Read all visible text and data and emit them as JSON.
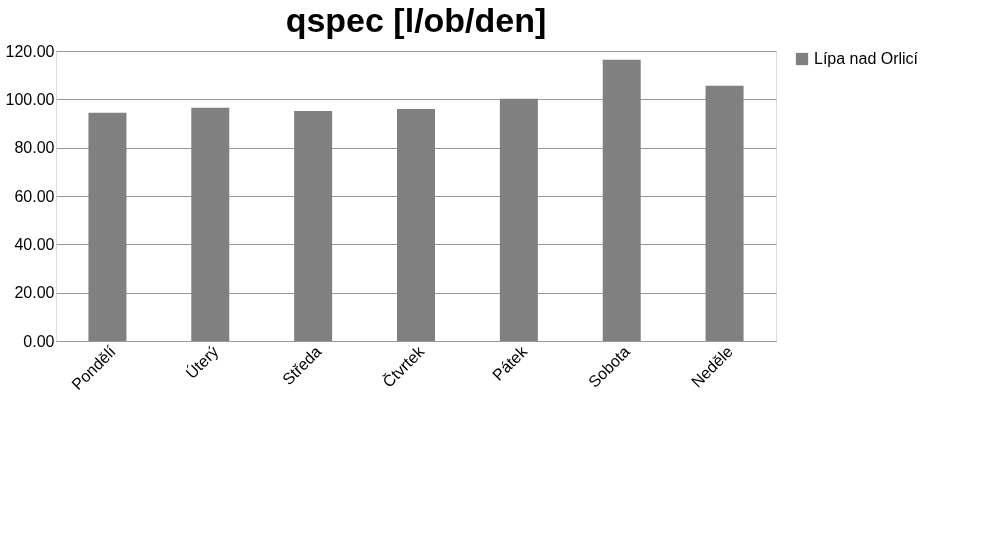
{
  "chart_data": {
    "type": "bar",
    "title": "qspec [l/ob/den]",
    "categories": [
      "Pondělí",
      "Úterý",
      "Středa",
      "Čtvrtek",
      "Pátek",
      "Sobota",
      "Neděle"
    ],
    "series": [
      {
        "name": "Lípa nad Orlicí",
        "color": "#808080",
        "values": [
          94.4,
          96.5,
          95.2,
          96.0,
          100.2,
          116.4,
          105.6
        ]
      }
    ],
    "ylim": [
      0,
      120
    ],
    "yticks": [
      {
        "value": 0,
        "label": "0.00"
      },
      {
        "value": 20,
        "label": "20.00"
      },
      {
        "value": 40,
        "label": "40.00"
      },
      {
        "value": 60,
        "label": "60.00"
      },
      {
        "value": 80,
        "label": "80.00"
      },
      {
        "value": 100,
        "label": "100.00"
      },
      {
        "value": 120,
        "label": "120.00"
      }
    ],
    "grid": "y",
    "legend": "right"
  }
}
